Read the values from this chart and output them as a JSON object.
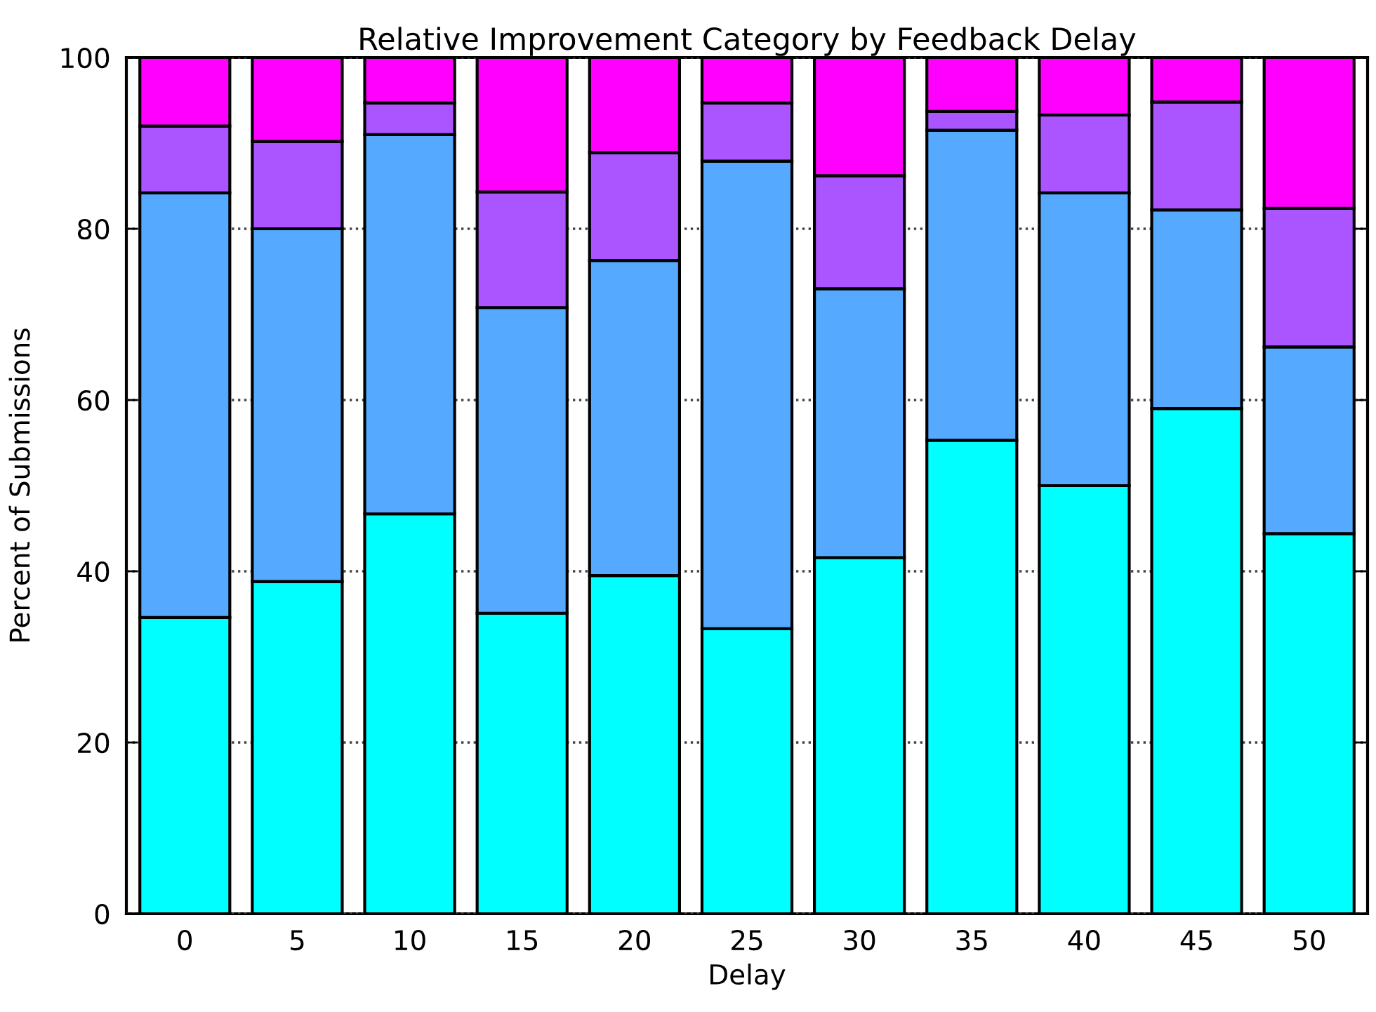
{
  "chart_data": {
    "type": "bar",
    "title": "Relative Improvement Category by Feedback Delay",
    "xlabel": "Delay",
    "ylabel": "Percent of Submissions",
    "categories": [
      "0",
      "5",
      "10",
      "15",
      "20",
      "25",
      "30",
      "35",
      "40",
      "45",
      "50"
    ],
    "stacked": true,
    "series": [
      {
        "color": "#00ffff",
        "values": [
          34.6,
          38.8,
          46.7,
          35.1,
          39.5,
          33.3,
          41.6,
          55.3,
          50.0,
          59.0,
          44.4
        ]
      },
      {
        "color": "#55aaff",
        "values": [
          49.6,
          41.2,
          44.3,
          35.7,
          36.8,
          54.6,
          31.4,
          36.2,
          34.2,
          23.2,
          21.8
        ]
      },
      {
        "color": "#aa55ff",
        "values": [
          7.8,
          10.2,
          3.7,
          13.5,
          12.6,
          6.8,
          13.2,
          2.2,
          9.1,
          12.6,
          16.2
        ]
      },
      {
        "color": "#ff00ff",
        "values": [
          8.0,
          9.8,
          5.3,
          15.7,
          11.1,
          5.3,
          13.8,
          6.3,
          6.7,
          5.2,
          17.6
        ]
      }
    ],
    "ylim": [
      0,
      100
    ],
    "yticks": [
      0,
      20,
      40,
      60,
      80,
      100
    ],
    "grid": "y"
  }
}
